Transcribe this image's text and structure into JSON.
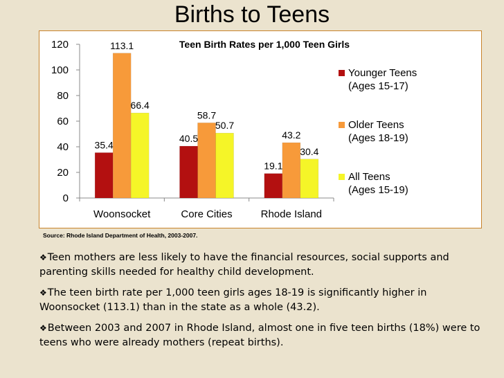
{
  "slide_title": "Births to Teens",
  "source": "Source: Rhode Island Department of Health,  2003-2007.",
  "bullet_marker": "❖",
  "bullets": [
    "Teen mothers are less likely to have the financial resources, social supports and parenting skills needed for healthy child development.",
    "The teen birth rate per 1,000 teen girls ages 18-19 is significantly higher in Woonsocket (113.1) than in the state as a whole (43.2).",
    "Between 2003 and 2007 in Rhode Island, almost one in five teen births (18%) were to teens who were already mothers (repeat births)."
  ],
  "chart_data": {
    "type": "bar",
    "title": "Teen Birth Rates per 1,000 Teen Girls",
    "categories": [
      "Woonsocket",
      "Core Cities",
      "Rhode Island"
    ],
    "series": [
      {
        "name": "Younger Teens",
        "name_line2": "(Ages 15-17)",
        "values": [
          35.4,
          40.5,
          19.1
        ],
        "color": "#b31010"
      },
      {
        "name": "Older Teens",
        "name_line2": "(Ages 18-19)",
        "values": [
          113.1,
          58.7,
          43.2
        ],
        "color": "#f79a3a"
      },
      {
        "name": "All Teens",
        "name_line2": "(Ages 15-19)",
        "values": [
          66.4,
          50.7,
          30.4
        ],
        "color": "#f5f528"
      }
    ],
    "ylim": [
      0,
      120
    ],
    "yticks": [
      0,
      20,
      40,
      60,
      80,
      100,
      120
    ],
    "grid": false,
    "legend": "right"
  }
}
